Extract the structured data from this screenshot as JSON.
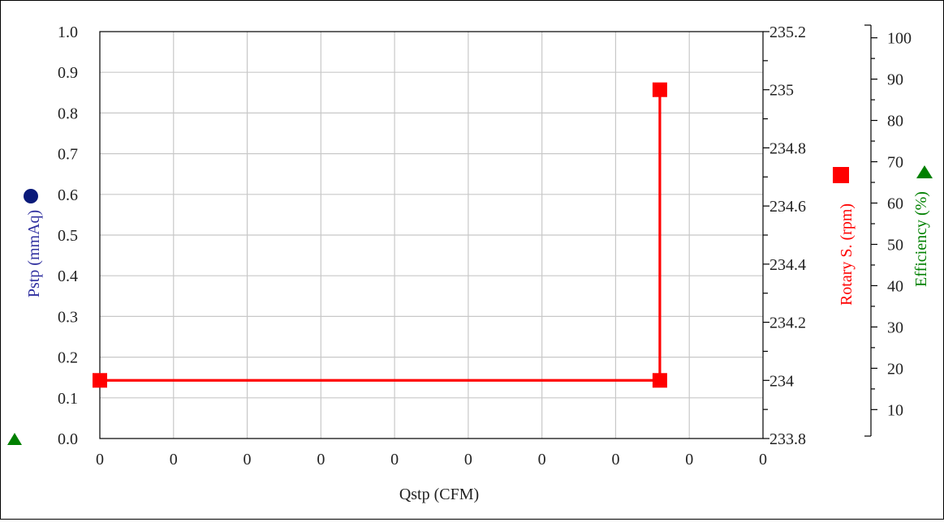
{
  "chart_data": {
    "type": "line",
    "xlabel": "Qstp (CFM)",
    "x_tick_labels": [
      "0",
      "0",
      "0",
      "0",
      "0",
      "0",
      "0",
      "0",
      "0",
      "0"
    ],
    "y_left": {
      "label": "Pstp (mmAq)",
      "color": "#2f2f9f",
      "marker": "circle",
      "marker_color": "#0a1a7a",
      "ticks": [
        "0.0",
        "0.1",
        "0.2",
        "0.3",
        "0.4",
        "0.5",
        "0.6",
        "0.7",
        "0.8",
        "0.9",
        "1.0"
      ],
      "ylim": [
        0,
        1.0
      ]
    },
    "y_right1": {
      "label": "Rotary S. (rpm)",
      "color": "#ff0000",
      "marker": "square",
      "ticks": [
        "233.8",
        "234",
        "234.2",
        "234.4",
        "234.6",
        "234.8",
        "235",
        "235.2"
      ],
      "ylim": [
        233.8,
        235.2
      ]
    },
    "y_right2": {
      "label": "Efficiency (%)",
      "color": "#008000",
      "marker": "triangle",
      "ticks": [
        "10",
        "20",
        "30",
        "40",
        "50",
        "60",
        "70",
        "80",
        "90",
        "100"
      ],
      "ylim": [
        3,
        101.5
      ]
    },
    "series": [
      {
        "name": "Rotary S. (rpm)",
        "axis": "y_right1",
        "color": "#ff0000",
        "points": [
          {
            "x": 0.0,
            "y": 234.0
          },
          {
            "x": 7.6,
            "y": 234.0
          },
          {
            "x": 7.6,
            "y": 235.0
          }
        ]
      }
    ],
    "xlim": [
      0,
      9
    ],
    "grid": true
  }
}
